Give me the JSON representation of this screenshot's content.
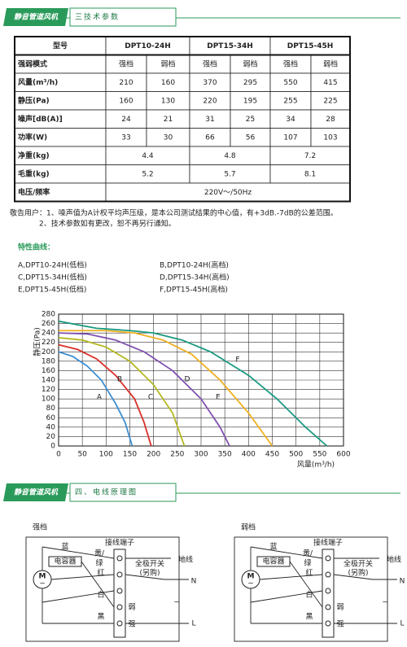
{
  "section3": {
    "badge": "静音管道风机",
    "title": "三技术参数"
  },
  "table": {
    "rows": [
      [
        "型号",
        "DPT10-24H",
        "DPT15-34H",
        "DPT15-45H"
      ],
      [
        "强弱模式",
        "强档",
        "弱档",
        "强档",
        "弱档",
        "强档",
        "弱档"
      ],
      [
        "风量(m³/h)",
        "210",
        "160",
        "370",
        "295",
        "550",
        "415"
      ],
      [
        "静压(Pa)",
        "160",
        "130",
        "220",
        "195",
        "255",
        "225"
      ],
      [
        "噪声[dB(A)]",
        "24",
        "21",
        "31",
        "25",
        "34",
        "28"
      ],
      [
        "功率(W)",
        "33",
        "30",
        "66",
        "56",
        "107",
        "103"
      ],
      [
        "净重(kg)",
        "4.4",
        "4.8",
        "7.2"
      ],
      [
        "毛重(kg)",
        "5.2",
        "5.7",
        "8.1"
      ],
      [
        "电压/频率",
        "220V～/50Hz"
      ]
    ]
  },
  "notes": [
    "敬告用户：1、噪声值为A计权平均声压级，是本公司测试结果的中心值，有+3dB.-7dB的公差范围。",
    "2、技术参数如有更改，恕不再另行通知。"
  ],
  "curves_heading": "特性曲线：",
  "legend": [
    "A,DPT10-24H(低档)",
    "B,DPT10-24H(高档)",
    "C,DPT15-34H(低档)",
    "D,DPT15-34H(高档)",
    "E,DPT15-45H(低档)",
    "F,DPT15-45H(高档)"
  ],
  "chart_data": {
    "type": "line",
    "x_label": "风量(m³/h)",
    "y_label": "静压(Pa)",
    "xlim": [
      0,
      600
    ],
    "ylim": [
      0,
      280
    ],
    "xticks": [
      0,
      50,
      100,
      150,
      200,
      250,
      300,
      350,
      400,
      450,
      500,
      550,
      600
    ],
    "yticks": [
      0,
      20,
      40,
      60,
      80,
      100,
      120,
      140,
      160,
      180,
      200,
      220,
      240,
      260,
      280
    ],
    "grid": true,
    "series": [
      {
        "name": "A",
        "color": "#3b8fd4",
        "x": [
          0,
          30,
          60,
          90,
          120,
          140,
          155
        ],
        "values": [
          200,
          190,
          170,
          140,
          90,
          50,
          0
        ]
      },
      {
        "name": "B",
        "color": "#d9302a",
        "x": [
          0,
          40,
          80,
          120,
          160,
          180,
          195
        ],
        "values": [
          215,
          205,
          185,
          150,
          100,
          50,
          0
        ]
      },
      {
        "name": "C",
        "color": "#b5b820",
        "x": [
          0,
          50,
          100,
          150,
          200,
          240,
          265
        ],
        "values": [
          230,
          225,
          210,
          180,
          130,
          70,
          0
        ]
      },
      {
        "name": "D",
        "color": "#8050b0",
        "x": [
          0,
          60,
          120,
          180,
          240,
          300,
          340,
          360
        ],
        "values": [
          240,
          238,
          225,
          200,
          160,
          100,
          40,
          0
        ]
      },
      {
        "name": "E",
        "color": "#f0b020",
        "x": [
          0,
          100,
          160,
          220,
          280,
          340,
          400,
          450
        ],
        "values": [
          245,
          245,
          240,
          225,
          195,
          140,
          70,
          0
        ]
      },
      {
        "name": "F",
        "color": "#1a9a80",
        "x": [
          0,
          80,
          150,
          200,
          260,
          320,
          400,
          460,
          520,
          565
        ],
        "values": [
          265,
          250,
          245,
          240,
          225,
          200,
          150,
          100,
          40,
          0
        ]
      }
    ]
  },
  "section4": {
    "badge": "静音管道风机",
    "title": "四、电线原理图"
  },
  "diagrams": [
    {
      "title": "强档",
      "labels": [
        "蓝",
        "电容器",
        "黄/",
        "绿",
        "红",
        "白",
        "黑",
        "接线端子",
        "全极开关",
        "(另购)",
        "地线",
        "N",
        "L",
        "弱",
        "强",
        "M",
        "~",
        "~"
      ]
    },
    {
      "title": "弱档",
      "labels": [
        "蓝",
        "电容器",
        "黄/",
        "绿",
        "红",
        "白",
        "黑",
        "接线端子",
        "全极开关",
        "(另购)",
        "地线",
        "N",
        "L",
        "弱",
        "强",
        "M",
        "~",
        "~"
      ]
    }
  ]
}
